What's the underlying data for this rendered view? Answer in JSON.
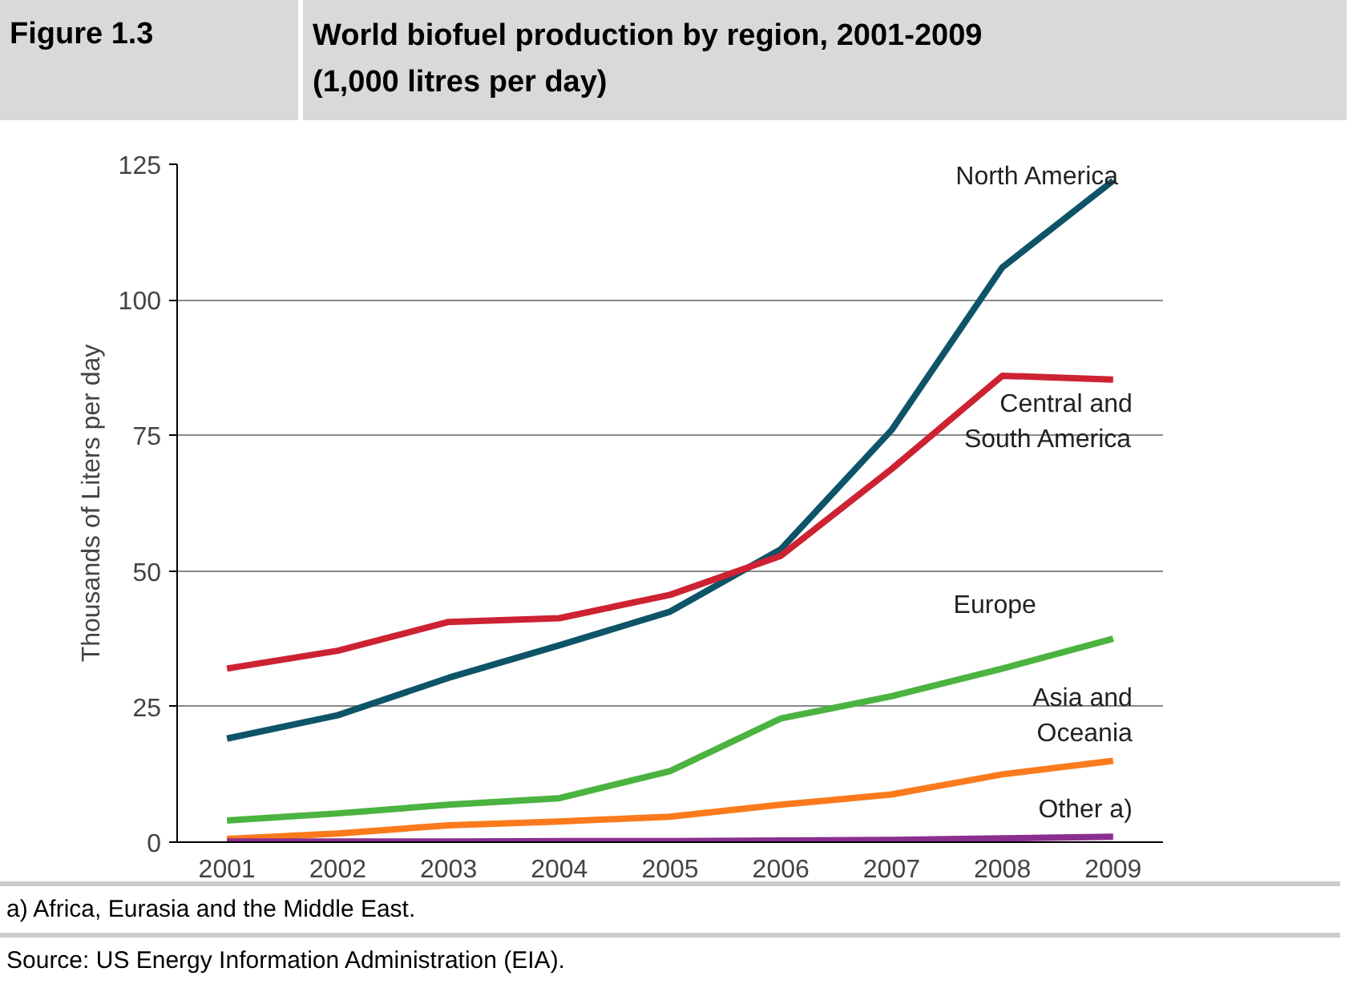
{
  "chart_data": {
    "type": "line",
    "subtitle": "Figure 1.3",
    "title": "World biofuel production by region, 2001-2009\n(1,000 litres per day)",
    "ylabel": "Thousands of Liters per day",
    "categories": [
      "2001",
      "2002",
      "2003",
      "2004",
      "2005",
      "2006",
      "2007",
      "2008",
      "2009"
    ],
    "series": [
      {
        "name": "North America",
        "color": "#0e5468",
        "values": [
          19.1,
          23.4,
          30.3,
          36.3,
          42.5,
          54,
          76,
          106,
          122
        ]
      },
      {
        "name": "Central and\nSouth America",
        "color": "#cd2232",
        "values": [
          32,
          35.3,
          40.6,
          41.3,
          45.6,
          52.8,
          68.8,
          86,
          85.3
        ]
      },
      {
        "name": "Europe",
        "color": "#4bb33f",
        "values": [
          4,
          5.3,
          6.9,
          8.1,
          13.1,
          22.8,
          26.9,
          32,
          37.5
        ]
      },
      {
        "name": "Asia and\nOceania",
        "color": "#fb7a1c",
        "values": [
          0.6,
          1.6,
          3.1,
          3.8,
          4.7,
          6.9,
          8.8,
          12.5,
          15
        ]
      },
      {
        "name": "Other a)",
        "color": "#8b2f8f",
        "values": [
          0.1,
          0.1,
          0.1,
          0.2,
          0.2,
          0.3,
          0.4,
          0.7,
          1.0
        ]
      }
    ],
    "ylim": [
      0,
      125
    ],
    "yticks": [
      0,
      25,
      50,
      75,
      100,
      125
    ],
    "grid": "y",
    "marker": "none",
    "line_style": "solid",
    "annotations": [
      "a) Africa, Eurasia and the Middle East.",
      "Source: US Energy Information Administration (EIA)."
    ]
  }
}
